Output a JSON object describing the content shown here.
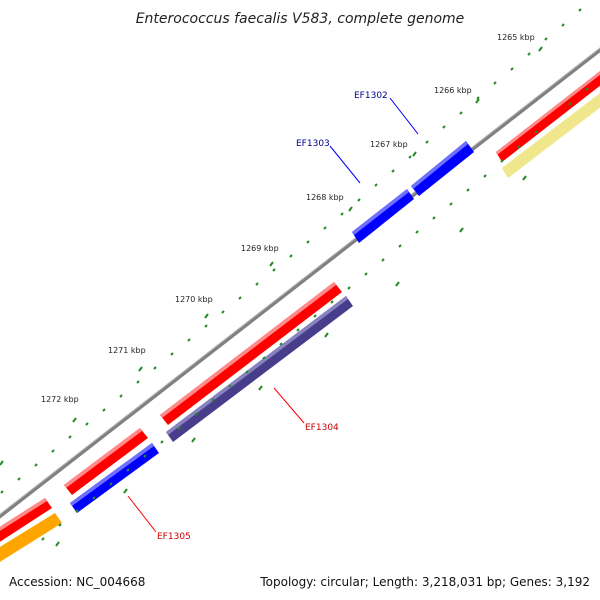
{
  "title": "Enterococcus faecalis V583, complete genome",
  "footer": {
    "accession": "Accession: NC_004668",
    "summary": "Topology: circular; Length: 3,218,031 bp; Genes: 3,192"
  },
  "scale_labels": [
    "1265 kbp",
    "1266 kbp",
    "1267 kbp",
    "1268 kbp",
    "1269 kbp",
    "1270 kbp",
    "1271 kbp",
    "1272 kbp"
  ],
  "gene_labels": [
    {
      "name": "EF1302",
      "color": "#00008b"
    },
    {
      "name": "EF1303",
      "color": "#00008b"
    },
    {
      "name": "EF1304",
      "color": "#cc0000"
    },
    {
      "name": "EF1305",
      "color": "#cc0000"
    }
  ],
  "colors": {
    "backbone": "#808080",
    "forward_cds": "#ff0000",
    "reverse_cds": "#0000ff",
    "reverse_cds_alt": "#483d8b",
    "cog_a": "#f0e68c",
    "cog_b": "#ffa500",
    "tick": "#228b22",
    "forward_label": "#cc0000",
    "reverse_label": "#00008b"
  }
}
